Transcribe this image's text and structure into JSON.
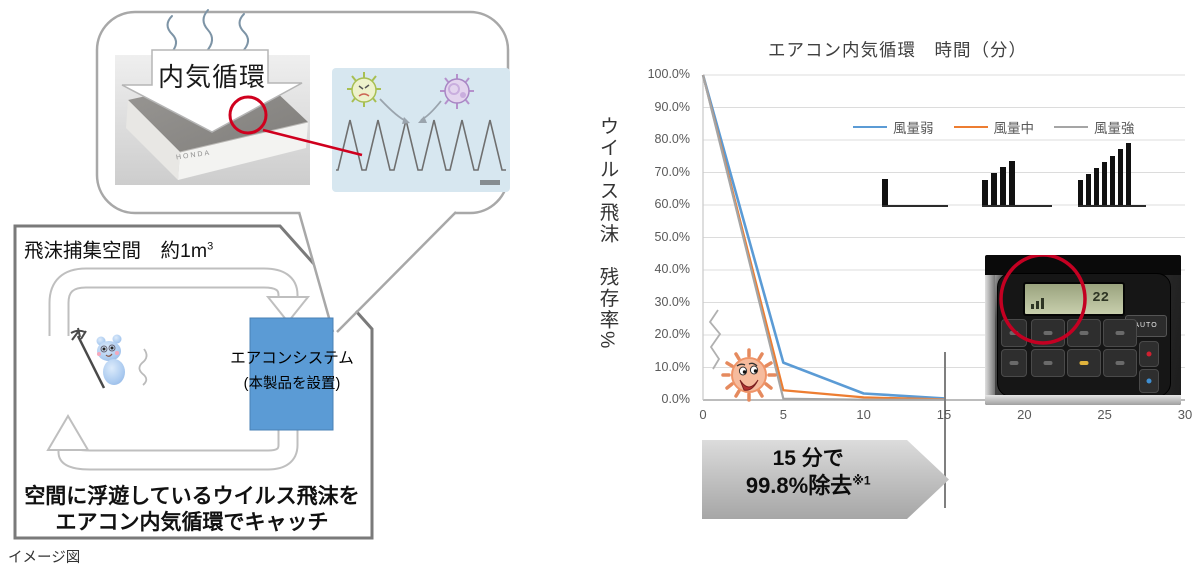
{
  "diagram": {
    "inner_air_label": "内気循環",
    "filter_brand": "HONDA",
    "room_title": "飛沫捕集空間　約1m",
    "room_title_sup": "3",
    "ac_line1": "エアコンシステム",
    "ac_line2": "(本製品を設置)",
    "caption_line1": "空間に浮遊しているウイルス飛沫を",
    "caption_line2": "エアコン内気循環でキャッチ",
    "image_note": "イメージ図"
  },
  "chart": {
    "title": "エアコン内気循環　時間（分）",
    "ylabel": "ウイルス飛沫　残存率%",
    "banner_line1": "15 分で",
    "banner_line2": "99.8%除去",
    "banner_sup": "※1",
    "panel": {
      "auto_label": "AUTO",
      "lcd_value": "22"
    }
  },
  "chart_data": {
    "type": "line",
    "title": "エアコン内気循環　時間（分）",
    "xlabel": "時間（分）",
    "ylabel": "ウイルス飛沫 残存率%",
    "x": [
      0,
      5,
      10,
      15
    ],
    "series": [
      {
        "name": "風量弱",
        "color": "#5B9BD5",
        "values": [
          100,
          11.5,
          2.0,
          0.5
        ]
      },
      {
        "name": "風量中",
        "color": "#ED7D31",
        "values": [
          100,
          3.0,
          0.8,
          0.2
        ]
      },
      {
        "name": "風量強",
        "color": "#A5A5A5",
        "values": [
          100,
          0.4,
          0.1,
          0.1
        ]
      }
    ],
    "xlim": [
      0,
      30
    ],
    "ylim": [
      0,
      100
    ],
    "xticks": [
      0,
      5,
      10,
      15,
      20,
      25,
      30
    ],
    "yticks": [
      "100.0%",
      "90.0%",
      "80.0%",
      "70.0%",
      "60.0%",
      "50.0%",
      "40.0%",
      "30.0%",
      "20.0%",
      "10.0%",
      "0.0%"
    ],
    "grid": true,
    "legend_position": "top-right",
    "annotation": "15 分で 99.8%除去※1",
    "marker_x": 15,
    "fan_icons": [
      {
        "name": "fan-speed-low-icon",
        "bars": [
          26
        ]
      },
      {
        "name": "fan-speed-mid-icon",
        "bars": [
          25,
          32,
          38,
          44
        ]
      },
      {
        "name": "fan-speed-high-icon",
        "bars": [
          25,
          31,
          37,
          43,
          49,
          56,
          62
        ]
      }
    ]
  }
}
